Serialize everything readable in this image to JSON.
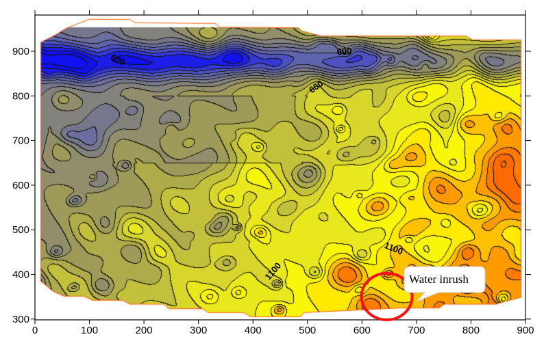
{
  "chart_data": {
    "type": "heatmap",
    "subtype": "filled contour map",
    "title": "",
    "xlabel": "",
    "ylabel": "",
    "xlim": [
      0,
      900
    ],
    "ylim": [
      300,
      980
    ],
    "x_ticks": [
      "0",
      "100",
      "200",
      "300",
      "400",
      "500",
      "600",
      "700",
      "800",
      "900"
    ],
    "y_ticks": [
      "300",
      "400",
      "500",
      "600",
      "700",
      "800",
      "900"
    ],
    "contour_interval": 50,
    "colormap": [
      {
        "value": 400,
        "color": "#1010f0"
      },
      {
        "value": 550,
        "color": "#5a5fb8"
      },
      {
        "value": 700,
        "color": "#7c7c84"
      },
      {
        "value": 850,
        "color": "#a4a052"
      },
      {
        "value": 1000,
        "color": "#e2e026"
      },
      {
        "value": 1100,
        "color": "#ffff00"
      },
      {
        "value": 1200,
        "color": "#ffab00"
      },
      {
        "value": 1300,
        "color": "#ff6a00"
      }
    ],
    "contour_labels": [
      {
        "text": "600",
        "x": 150,
        "y": 875
      },
      {
        "text": "600",
        "x": 568,
        "y": 893
      },
      {
        "text": "600",
        "x": 519,
        "y": 815
      },
      {
        "text": "1100",
        "x": 656,
        "y": 452
      },
      {
        "text": "1100",
        "x": 441,
        "y": 403
      }
    ],
    "annotation": {
      "text": "Water inrush",
      "marker": "red circle",
      "x": 648,
      "y": 355,
      "marker_color": "#ff1010"
    },
    "boundary_color": "#ff5a00",
    "grid": false
  }
}
